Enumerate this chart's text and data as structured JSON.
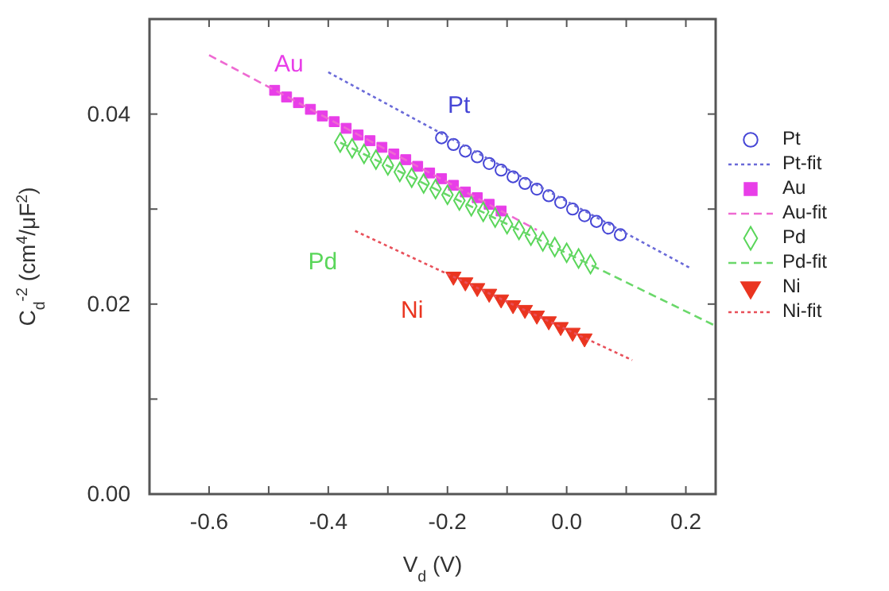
{
  "chart_data": {
    "type": "scatter",
    "xlabel": "V$_{d}$ (V)",
    "ylabel": "C$_{d}$$^{-2}$ (cm$^{4}$/μF$^{2}$)",
    "xlim": [
      -0.7,
      0.25
    ],
    "ylim": [
      0,
      0.05
    ],
    "xticks": [
      {
        "value": -0.6,
        "label": "-0.6"
      },
      {
        "value": -0.5,
        "label": null
      },
      {
        "value": -0.4,
        "label": "-0.4"
      },
      {
        "value": -0.3,
        "label": null
      },
      {
        "value": -0.2,
        "label": "-0.2"
      },
      {
        "value": -0.1,
        "label": null
      },
      {
        "value": 0,
        "label": "0.0"
      },
      {
        "value": 0.1,
        "label": null
      },
      {
        "value": 0.2,
        "label": "0.2"
      }
    ],
    "yticks": [
      {
        "value": 0,
        "label": "0.00"
      },
      {
        "value": 0.01,
        "label": null
      },
      {
        "value": 0.02,
        "label": "0.02"
      },
      {
        "value": 0.03,
        "label": null
      },
      {
        "value": 0.04,
        "label": "0.04"
      }
    ],
    "legend": "right",
    "series": [
      {
        "name": "Pt",
        "marker": "circle",
        "color": "#4646d6",
        "x": [
          -0.21,
          -0.19,
          -0.17,
          -0.15,
          -0.13,
          -0.11,
          -0.09,
          -0.07,
          -0.05,
          -0.03,
          -0.01,
          0.01,
          0.03,
          0.05,
          0.07,
          0.09
        ],
        "values": [
          0.0375,
          0.0368,
          0.0361,
          0.0355,
          0.0348,
          0.0341,
          0.0334,
          0.0327,
          0.0321,
          0.0314,
          0.0307,
          0.03,
          0.0293,
          0.0287,
          0.028,
          0.0273
        ]
      },
      {
        "name": "Pt-fit",
        "type": "line",
        "line_style": "dotted",
        "color": "#6a6ad8",
        "x": [
          -0.4,
          0.21
        ],
        "values": [
          0.0444,
          0.0237
        ]
      },
      {
        "name": "Au",
        "marker": "square",
        "color": "#e83ee8",
        "x": [
          -0.49,
          -0.47,
          -0.45,
          -0.43,
          -0.41,
          -0.39,
          -0.37,
          -0.35,
          -0.33,
          -0.31,
          -0.29,
          -0.27,
          -0.25,
          -0.23,
          -0.21,
          -0.19,
          -0.17,
          -0.15,
          -0.13,
          -0.11
        ],
        "values": [
          0.0425,
          0.0418,
          0.0412,
          0.0405,
          0.0398,
          0.0392,
          0.0385,
          0.0378,
          0.0372,
          0.0365,
          0.0358,
          0.0352,
          0.0345,
          0.0338,
          0.0332,
          0.0325,
          0.0318,
          0.0312,
          0.0305,
          0.0298
        ]
      },
      {
        "name": "Au-fit",
        "type": "line",
        "line_style": "dashed",
        "color": "#ee6ad2",
        "x": [
          -0.6,
          -0.05
        ],
        "values": [
          0.0462,
          0.0278
        ]
      },
      {
        "name": "Pd",
        "marker": "diamond",
        "color": "#5ad65a",
        "x": [
          -0.38,
          -0.36,
          -0.34,
          -0.32,
          -0.3,
          -0.28,
          -0.26,
          -0.24,
          -0.22,
          -0.2,
          -0.18,
          -0.16,
          -0.14,
          -0.12,
          -0.1,
          -0.08,
          -0.06,
          -0.04,
          -0.02,
          0,
          0.02,
          0.04
        ],
        "values": [
          0.037,
          0.0364,
          0.0358,
          0.0352,
          0.0346,
          0.0339,
          0.0333,
          0.0327,
          0.0321,
          0.0315,
          0.0309,
          0.0303,
          0.0297,
          0.0291,
          0.0284,
          0.0278,
          0.0272,
          0.0266,
          0.026,
          0.0254,
          0.0248,
          0.0242
        ]
      },
      {
        "name": "Pd-fit",
        "type": "line",
        "line_style": "dashed",
        "color": "#6ad86a",
        "x": [
          -0.38,
          0.25
        ],
        "values": [
          0.037,
          0.0177
        ]
      },
      {
        "name": "Ni",
        "marker": "triangle",
        "color": "#ea3520",
        "x": [
          -0.19,
          -0.17,
          -0.15,
          -0.13,
          -0.11,
          -0.09,
          -0.07,
          -0.05,
          -0.03,
          -0.01,
          0.01,
          0.03
        ],
        "values": [
          0.0229,
          0.0223,
          0.0217,
          0.0211,
          0.0205,
          0.0199,
          0.0194,
          0.0188,
          0.0182,
          0.0176,
          0.017,
          0.0164
        ]
      },
      {
        "name": "Ni-fit",
        "type": "line",
        "line_style": "dotted",
        "color": "#e8505a",
        "x": [
          -0.355,
          0.11
        ],
        "values": [
          0.0277,
          0.0141
        ]
      }
    ],
    "annotations": [
      "Pt",
      "Au",
      "Pd",
      "Ni"
    ]
  }
}
